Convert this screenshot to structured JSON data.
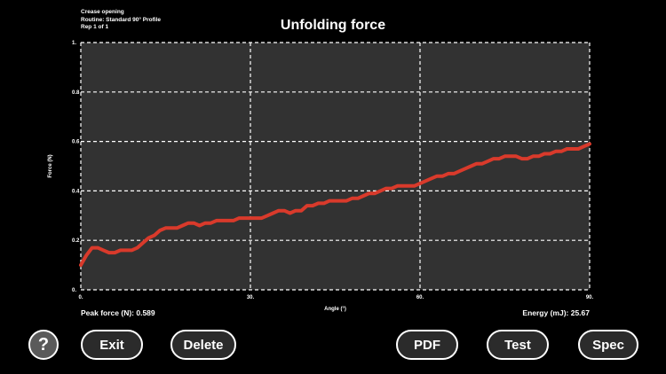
{
  "header": {
    "test_name": "Crease opening",
    "routine": "Routine: Standard 90° Profile",
    "rep": "Rep 1 of 1",
    "title": "Unfolding force"
  },
  "stats": {
    "peak_force": "Peak force (N): 0.589",
    "energy": "Energy (mJ): 25.67"
  },
  "buttons": {
    "help": "?",
    "exit": "Exit",
    "delete": "Delete",
    "pdf": "PDF",
    "test": "Test",
    "spec": "Spec"
  },
  "colors": {
    "background": "#000000",
    "plot_area": "#323232",
    "line": "#d93a2b",
    "grid": "#ffffff"
  },
  "chart_data": {
    "type": "line",
    "title": "Unfolding force",
    "xlabel": "Angle (°)",
    "ylabel": "Force (N)",
    "xlim": [
      0,
      90
    ],
    "ylim": [
      0,
      1
    ],
    "xticks": [
      0,
      30,
      60,
      90
    ],
    "xtick_labels": [
      "0.",
      "30.",
      "60.",
      "90."
    ],
    "yticks": [
      0,
      0.2,
      0.4,
      0.6,
      0.8,
      1
    ],
    "ytick_labels": [
      "0.",
      "0.2",
      "0.4",
      "0.6",
      "0.8",
      "1."
    ],
    "grid": true,
    "series": [
      {
        "x": [
          0,
          1,
          2,
          3,
          4,
          5,
          6,
          7,
          8,
          9,
          10,
          11,
          12,
          13,
          14,
          15,
          16,
          17,
          18,
          19,
          20,
          21,
          22,
          23,
          24,
          25,
          26,
          27,
          28,
          29,
          30,
          31,
          32,
          33,
          34,
          35,
          36,
          37,
          38,
          39,
          40,
          41,
          42,
          43,
          44,
          45,
          46,
          47,
          48,
          49,
          50,
          51,
          52,
          53,
          54,
          55,
          56,
          57,
          58,
          59,
          60,
          61,
          62,
          63,
          64,
          65,
          66,
          67,
          68,
          69,
          70,
          71,
          72,
          73,
          74,
          75,
          76,
          77,
          78,
          79,
          80,
          81,
          82,
          83,
          84,
          85,
          86,
          87,
          88,
          89,
          90
        ],
        "y": [
          0.1,
          0.14,
          0.17,
          0.17,
          0.16,
          0.15,
          0.15,
          0.16,
          0.16,
          0.16,
          0.17,
          0.19,
          0.21,
          0.22,
          0.24,
          0.25,
          0.25,
          0.25,
          0.26,
          0.27,
          0.27,
          0.26,
          0.27,
          0.27,
          0.28,
          0.28,
          0.28,
          0.28,
          0.29,
          0.29,
          0.29,
          0.29,
          0.29,
          0.3,
          0.31,
          0.32,
          0.32,
          0.31,
          0.32,
          0.32,
          0.34,
          0.34,
          0.35,
          0.35,
          0.36,
          0.36,
          0.36,
          0.36,
          0.37,
          0.37,
          0.38,
          0.39,
          0.39,
          0.4,
          0.41,
          0.41,
          0.42,
          0.42,
          0.42,
          0.42,
          0.43,
          0.44,
          0.45,
          0.46,
          0.46,
          0.47,
          0.47,
          0.48,
          0.49,
          0.5,
          0.51,
          0.51,
          0.52,
          0.53,
          0.53,
          0.54,
          0.54,
          0.54,
          0.53,
          0.53,
          0.54,
          0.54,
          0.55,
          0.55,
          0.56,
          0.56,
          0.57,
          0.57,
          0.57,
          0.58,
          0.59
        ]
      }
    ]
  }
}
